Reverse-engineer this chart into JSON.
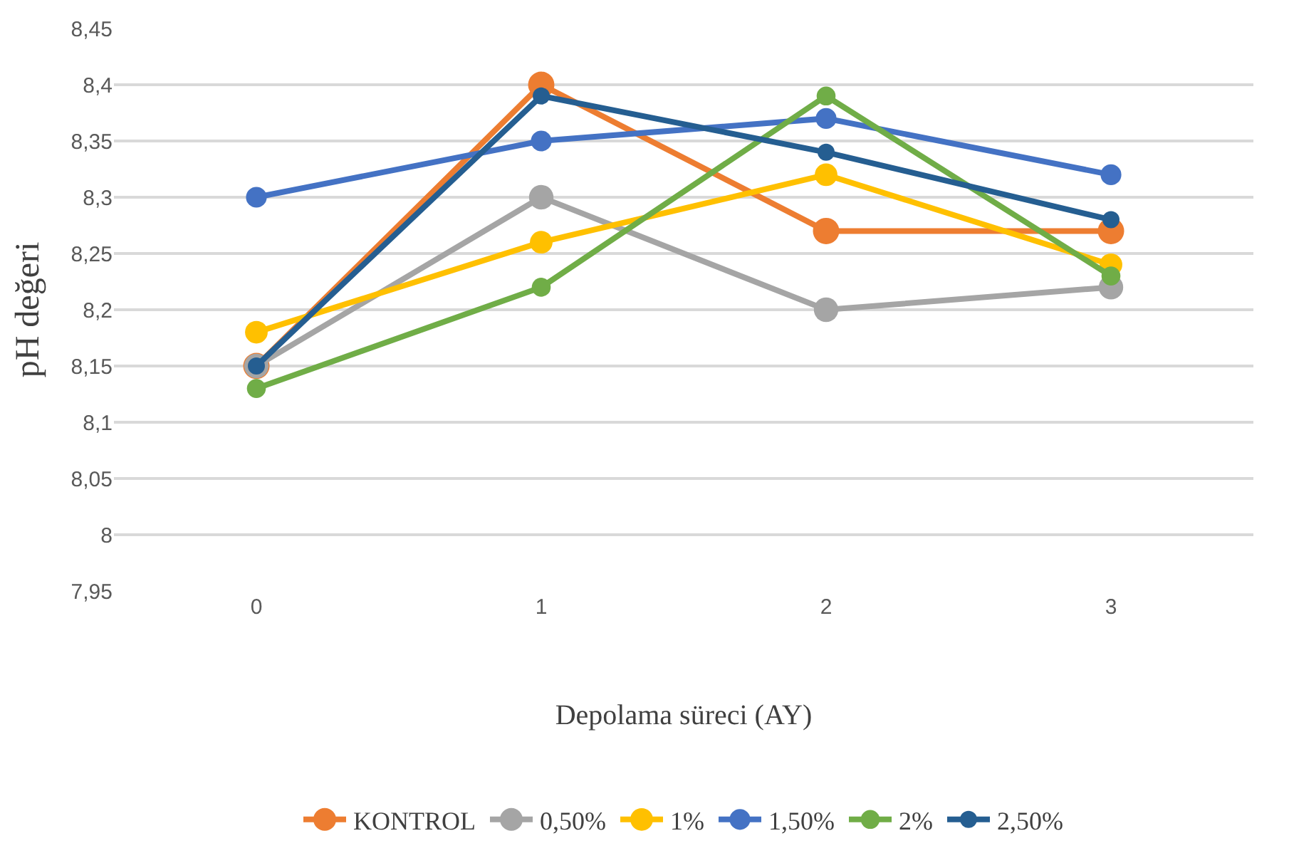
{
  "chart_data": {
    "type": "line",
    "xlabel": "Depolama süreci (AY)",
    "ylabel": "pH değeri",
    "categories": [
      "0",
      "1",
      "2",
      "3"
    ],
    "ylim": [
      7.95,
      8.45
    ],
    "yticks": [
      {
        "value": 7.95,
        "label": "7,95"
      },
      8,
      {
        "value": 8.05,
        "label": "8,05"
      },
      {
        "value": 8.1,
        "label": "8,1"
      },
      {
        "value": 8.15,
        "label": "8,15"
      },
      {
        "value": 8.2,
        "label": "8,2"
      },
      {
        "value": 8.25,
        "label": "8,25"
      },
      {
        "value": 8.3,
        "label": "8,3"
      },
      {
        "value": 8.35,
        "label": "8,35"
      },
      {
        "value": 8.4,
        "label": "8,4"
      },
      {
        "value": 8.45,
        "label": "8,45"
      }
    ],
    "grid": "y",
    "legend": "bottom",
    "marker": "circle",
    "line_style": "solid",
    "series": [
      {
        "name": "KONTROL",
        "color": "#ed7d31",
        "values": [
          8.15,
          8.4,
          8.27,
          8.27
        ]
      },
      {
        "name": "0,50%",
        "color": "#a5a5a5",
        "values": [
          8.15,
          8.3,
          8.2,
          8.22
        ]
      },
      {
        "name": "1%",
        "color": "#ffc000",
        "values": [
          8.18,
          8.26,
          8.32,
          8.24
        ]
      },
      {
        "name": "1,50%",
        "color": "#4472c4",
        "values": [
          8.3,
          8.35,
          8.37,
          8.32
        ]
      },
      {
        "name": "2%",
        "color": "#70ad47",
        "values": [
          8.13,
          8.22,
          8.39,
          8.23
        ]
      },
      {
        "name": "2,50%",
        "color": "#255e91",
        "values": [
          8.15,
          8.39,
          8.34,
          8.28
        ]
      }
    ]
  }
}
